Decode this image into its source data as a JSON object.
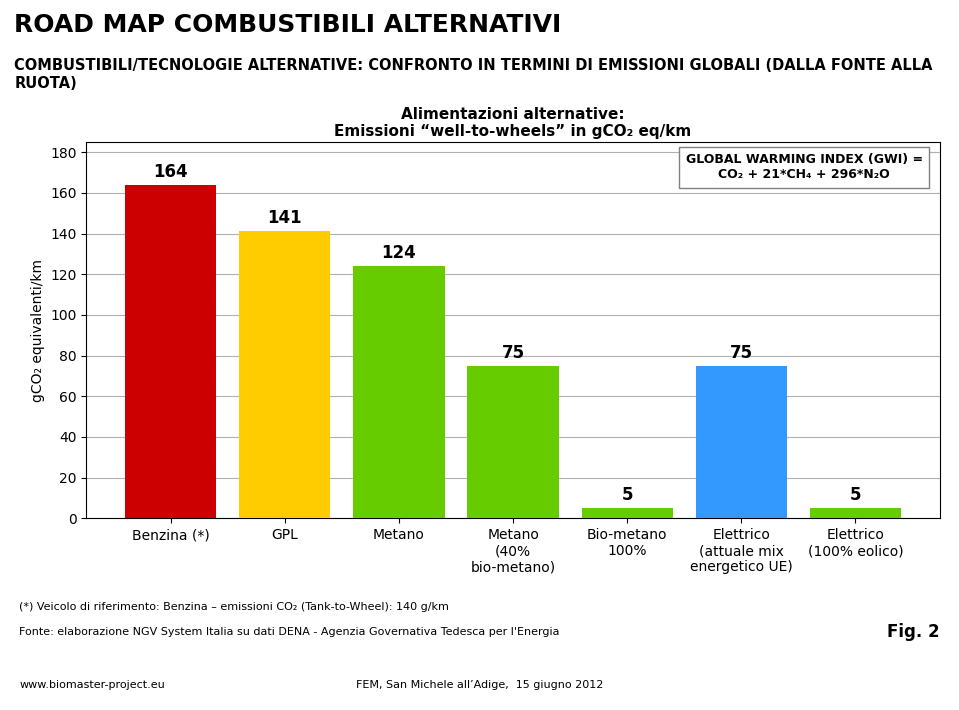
{
  "chart_data": {
    "type": "bar",
    "title": "ROAD MAP COMBUSTIBILI ALTERNATIVI",
    "subtitle": "COMBUSTIBILI/TECNOLOGIE ALTERNATIVE: CONFRONTO IN TERMINI DI EMISSIONI GLOBALI (DALLA FONTE ALLA RUOTA)",
    "chart_title": "Alimentazioni alternative:\nEmissioni “well-to-wheels” in gCO₂ eq/km",
    "ylabel": "gCO₂ equivalenti/km",
    "categories": [
      "Benzina (*)",
      "GPL",
      "Metano",
      "Metano\n(40%\nbio-metano)",
      "Bio-metano\n100%",
      "Elettrico\n(attuale mix\nenergetico UE)",
      "Elettrico\n(100% eolico)"
    ],
    "values": [
      164,
      141,
      124,
      75,
      5,
      75,
      5
    ],
    "colors": [
      "#cc0000",
      "#ffcc00",
      "#66cc00",
      "#66cc00",
      "#66cc00",
      "#3399ff",
      "#66cc00"
    ],
    "ylim": [
      0,
      185
    ],
    "yticks": [
      0,
      20,
      40,
      60,
      80,
      100,
      120,
      140,
      160,
      180
    ],
    "grid": true,
    "data_labels": true,
    "annotations": [
      "GLOBAL WARMING INDEX (GWI) =\nCO₂ + 21*CH₄ + 296*N₂O",
      "(*) Veicolo di riferimento: Benzina – emissioni CO₂ (Tank-to-Wheel): 140 g/km",
      "Fonte: elaborazione NGV System Italia su dati DENA - Agenzia Governativa Tedesca per l'Energia",
      "Fig. 2",
      "www.biomaster-project.eu",
      "FEM, San Michele all’Adige,  15 giugno 2012"
    ]
  }
}
